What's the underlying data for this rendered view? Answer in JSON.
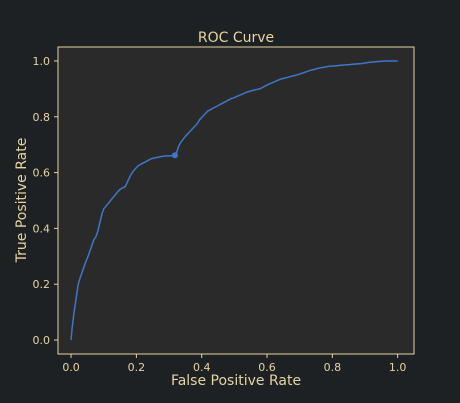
{
  "colors": {
    "background": "#1e2124",
    "plot_background": "#2b2a2a",
    "frame": "#e6d3a3",
    "text": "#e6d3a3",
    "series": "#3e76c9"
  },
  "chart_data": {
    "type": "line",
    "title": "ROC Curve",
    "xlabel": "False Positive Rate",
    "ylabel": "True Positive Rate",
    "xlim": [
      -0.04,
      1.05
    ],
    "ylim": [
      -0.05,
      1.05
    ],
    "xticks": [
      0.0,
      0.2,
      0.4,
      0.6,
      0.8,
      1.0
    ],
    "yticks": [
      0.0,
      0.2,
      0.4,
      0.6,
      0.8,
      1.0
    ],
    "xtick_labels": [
      "0.0",
      "0.2",
      "0.4",
      "0.6",
      "0.8",
      "1.0"
    ],
    "ytick_labels": [
      "0.0",
      "0.2",
      "0.4",
      "0.6",
      "0.8",
      "1.0"
    ],
    "grid": false,
    "legend": "none",
    "series": [
      {
        "x": [
          0.0,
          0.003,
          0.008,
          0.013,
          0.018,
          0.022,
          0.027,
          0.033,
          0.039,
          0.045,
          0.052,
          0.058,
          0.064,
          0.07,
          0.076,
          0.082,
          0.088,
          0.094,
          0.1,
          0.107,
          0.114,
          0.121,
          0.128,
          0.135,
          0.142,
          0.15,
          0.158,
          0.166,
          0.174,
          0.182,
          0.19,
          0.198,
          0.206,
          0.214,
          0.222,
          0.23,
          0.238,
          0.246,
          0.254,
          0.262,
          0.27,
          0.278,
          0.286,
          0.294,
          0.302,
          0.31,
          0.318,
          0.323,
          0.328,
          0.334,
          0.34,
          0.347,
          0.354,
          0.362,
          0.37,
          0.378,
          0.386,
          0.394,
          0.402,
          0.41,
          0.418,
          0.426,
          0.434,
          0.442,
          0.45,
          0.458,
          0.466,
          0.474,
          0.482,
          0.49,
          0.498,
          0.506,
          0.514,
          0.522,
          0.53,
          0.538,
          0.546,
          0.554,
          0.562,
          0.57,
          0.578,
          0.586,
          0.594,
          0.602,
          0.612,
          0.622,
          0.632,
          0.642,
          0.652,
          0.662,
          0.672,
          0.682,
          0.692,
          0.702,
          0.712,
          0.722,
          0.732,
          0.742,
          0.752,
          0.762,
          0.772,
          0.782,
          0.792,
          0.802,
          0.812,
          0.822,
          0.832,
          0.842,
          0.852,
          0.862,
          0.872,
          0.882,
          0.892,
          0.902,
          0.912,
          0.922,
          0.932,
          0.942,
          0.952,
          0.962,
          0.972,
          0.982,
          0.992,
          1.0
        ],
        "y": [
          0.0,
          0.04,
          0.09,
          0.13,
          0.17,
          0.2,
          0.22,
          0.24,
          0.26,
          0.28,
          0.3,
          0.32,
          0.34,
          0.36,
          0.37,
          0.39,
          0.42,
          0.45,
          0.47,
          0.48,
          0.49,
          0.5,
          0.51,
          0.52,
          0.53,
          0.54,
          0.545,
          0.55,
          0.57,
          0.59,
          0.605,
          0.615,
          0.625,
          0.63,
          0.635,
          0.64,
          0.645,
          0.65,
          0.652,
          0.654,
          0.656,
          0.658,
          0.659,
          0.66,
          0.66,
          0.661,
          0.662,
          0.67,
          0.69,
          0.705,
          0.715,
          0.725,
          0.735,
          0.745,
          0.755,
          0.765,
          0.775,
          0.79,
          0.8,
          0.81,
          0.82,
          0.825,
          0.83,
          0.835,
          0.84,
          0.845,
          0.85,
          0.855,
          0.86,
          0.865,
          0.868,
          0.872,
          0.876,
          0.88,
          0.884,
          0.888,
          0.891,
          0.894,
          0.896,
          0.898,
          0.9,
          0.905,
          0.91,
          0.915,
          0.92,
          0.925,
          0.93,
          0.935,
          0.938,
          0.941,
          0.944,
          0.947,
          0.95,
          0.954,
          0.958,
          0.962,
          0.966,
          0.969,
          0.972,
          0.975,
          0.977,
          0.979,
          0.981,
          0.982,
          0.983,
          0.984,
          0.985,
          0.986,
          0.987,
          0.988,
          0.989,
          0.99,
          0.991,
          0.993,
          0.995,
          0.996,
          0.997,
          0.998,
          0.999,
          1.0,
          1.0,
          1.0,
          1.0,
          1.0
        ],
        "marker": {
          "x": 0.318,
          "y": 0.662
        }
      }
    ]
  }
}
